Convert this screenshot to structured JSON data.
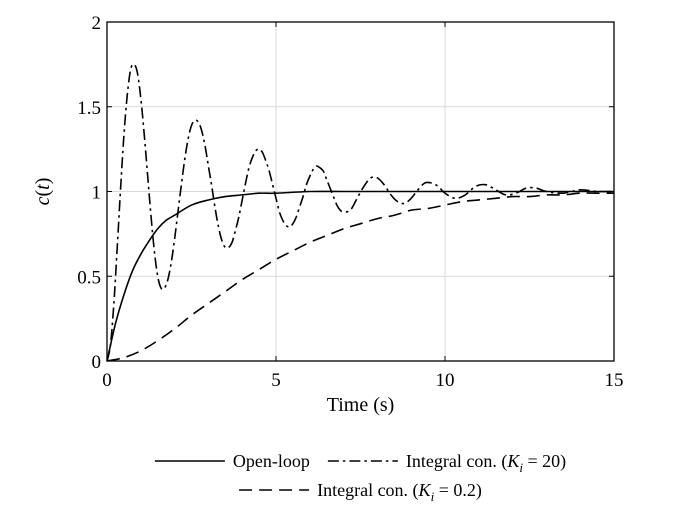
{
  "chart_data": {
    "type": "line",
    "title": "",
    "xlabel": "Time (s)",
    "ylabel": {
      "fn": "c",
      "arg": "t"
    },
    "xlim": [
      0,
      15
    ],
    "ylim": [
      0,
      2
    ],
    "xticks": [
      0,
      5,
      10,
      15
    ],
    "yticks": [
      0,
      0.5,
      1,
      1.5,
      2
    ],
    "xtick_labels": [
      "0",
      "5",
      "10",
      "15"
    ],
    "ytick_labels": [
      "0",
      "0.5",
      "1",
      "1.5",
      "2"
    ],
    "grid": true,
    "legend_position": "below",
    "color": "#000000",
    "series": [
      {
        "name": "Open-loop",
        "legend": {
          "prefix": "Open-loop",
          "symbol": "",
          "sub": "",
          "value": ""
        },
        "linestyle": "solid",
        "x": [
          0,
          0.25,
          0.5,
          0.75,
          1,
          1.25,
          1.5,
          1.75,
          2,
          2.5,
          3,
          3.5,
          4,
          4.5,
          5,
          6,
          7,
          8,
          9,
          10,
          11,
          12,
          13,
          14,
          15
        ],
        "y": [
          0,
          0.22,
          0.39,
          0.53,
          0.63,
          0.71,
          0.78,
          0.83,
          0.86,
          0.92,
          0.95,
          0.97,
          0.98,
          0.99,
          0.99,
          1.0,
          1.0,
          1.0,
          1.0,
          1.0,
          1.0,
          1.0,
          1.0,
          1.0,
          1.0
        ]
      },
      {
        "name": "Integral con. (Ki = 20)",
        "legend": {
          "prefix": "Integral con. (",
          "symbol": "K",
          "sub": "i",
          "value": " = 20)"
        },
        "linestyle": "dashdot",
        "x": [
          0,
          0.1,
          0.2,
          0.3,
          0.4,
          0.5,
          0.6,
          0.7,
          0.8,
          0.9,
          1.0,
          1.1,
          1.2,
          1.3,
          1.4,
          1.5,
          1.6,
          1.7,
          1.8,
          1.9,
          2.0,
          2.1,
          2.2,
          2.3,
          2.4,
          2.5,
          2.6,
          2.7,
          2.8,
          2.9,
          3.0,
          3.1,
          3.2,
          3.3,
          3.4,
          3.5,
          3.6,
          3.7,
          3.8,
          3.9,
          4.0,
          4.1,
          4.2,
          4.3,
          4.4,
          4.5,
          4.6,
          4.7,
          4.8,
          4.9,
          5.0,
          5.1,
          5.2,
          5.3,
          5.4,
          5.5,
          5.6,
          5.7,
          5.8,
          5.9,
          6.0,
          6.1,
          6.2,
          6.3,
          6.4,
          6.5,
          6.6,
          6.7,
          6.8,
          6.9,
          7.0,
          7.2,
          7.4,
          7.6,
          7.8,
          8.0,
          8.2,
          8.4,
          8.6,
          8.8,
          9.0,
          9.2,
          9.4,
          9.6,
          9.8,
          10.0,
          10.3,
          10.6,
          10.9,
          11.2,
          11.5,
          11.8,
          12.1,
          12.4,
          12.7,
          13.0,
          13.5,
          14.0,
          14.5,
          15.0
        ],
        "y": [
          0,
          0.09,
          0.33,
          0.66,
          1.01,
          1.33,
          1.57,
          1.72,
          1.75,
          1.7,
          1.55,
          1.34,
          1.1,
          0.86,
          0.65,
          0.5,
          0.43,
          0.43,
          0.48,
          0.58,
          0.72,
          0.88,
          1.04,
          1.19,
          1.31,
          1.39,
          1.42,
          1.41,
          1.36,
          1.27,
          1.15,
          1.03,
          0.9,
          0.79,
          0.71,
          0.67,
          0.67,
          0.7,
          0.77,
          0.85,
          0.95,
          1.05,
          1.14,
          1.2,
          1.24,
          1.25,
          1.23,
          1.18,
          1.12,
          1.04,
          0.96,
          0.88,
          0.83,
          0.8,
          0.79,
          0.81,
          0.85,
          0.91,
          0.97,
          1.04,
          1.09,
          1.13,
          1.15,
          1.14,
          1.12,
          1.07,
          1.02,
          0.97,
          0.92,
          0.89,
          0.88,
          0.89,
          0.96,
          1.03,
          1.08,
          1.08,
          1.04,
          0.98,
          0.94,
          0.93,
          0.96,
          1.01,
          1.05,
          1.05,
          1.03,
          0.99,
          0.96,
          0.98,
          1.03,
          1.04,
          1.01,
          0.98,
          0.99,
          1.02,
          1.02,
          1.0,
          0.99,
          1.01,
          1.0,
          1.0
        ]
      },
      {
        "name": "Integral con. (Ki = 0.2)",
        "legend": {
          "prefix": "Integral con. (",
          "symbol": "K",
          "sub": "i",
          "value": " = 0.2)"
        },
        "linestyle": "dashed",
        "x": [
          0,
          0.5,
          1,
          1.5,
          2,
          2.5,
          3,
          3.5,
          4,
          4.5,
          5,
          5.5,
          6,
          6.5,
          7,
          7.5,
          8,
          8.5,
          9,
          9.5,
          10,
          10.5,
          11,
          11.5,
          12,
          12.5,
          13,
          13.5,
          14,
          14.5,
          15
        ],
        "y": [
          0,
          0.02,
          0.06,
          0.12,
          0.19,
          0.27,
          0.34,
          0.41,
          0.48,
          0.54,
          0.6,
          0.65,
          0.7,
          0.74,
          0.78,
          0.81,
          0.84,
          0.86,
          0.89,
          0.9,
          0.92,
          0.94,
          0.95,
          0.96,
          0.97,
          0.97,
          0.98,
          0.98,
          0.99,
          0.99,
          0.99
        ]
      }
    ]
  }
}
